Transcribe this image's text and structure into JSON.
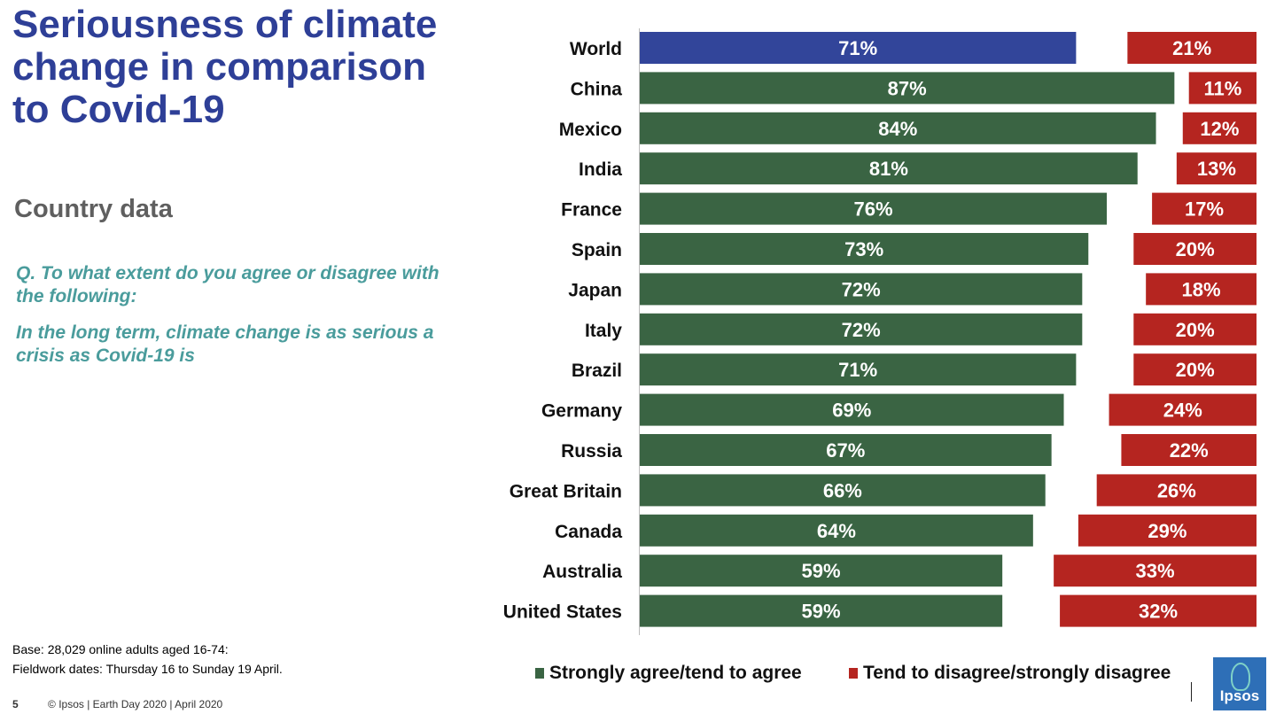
{
  "header": {
    "title": "Seriousness of climate change in comparison to Covid-19",
    "subtitle": "Country data",
    "question": "Q. To what extent do you agree or disagree with the following:",
    "statement": "In the long term, climate change is as serious a crisis as Covid-19 is"
  },
  "notes": {
    "base": "Base: 28,029 online adults aged 16-74:",
    "fieldwork": "Fieldwork dates: Thursday 16 to Sunday 19 April."
  },
  "footer": {
    "page": "5",
    "text": "© Ipsos | Earth Day 2020 | April 2020"
  },
  "logo": {
    "text": "Ipsos",
    "color": "#2e6fb7"
  },
  "legend": {
    "agree_label": "Strongly agree/tend to agree",
    "disagree_label": "Tend to disagree/strongly disagree"
  },
  "chart_data": {
    "type": "bar",
    "orientation": "horizontal",
    "title": "",
    "categories": [
      "World",
      "China",
      "Mexico",
      "India",
      "France",
      "Spain",
      "Japan",
      "Italy",
      "Brazil",
      "Germany",
      "Russia",
      "Great Britain",
      "Canada",
      "Australia",
      "United States"
    ],
    "series": [
      {
        "name": "Strongly agree/tend to agree",
        "values": [
          71,
          87,
          84,
          81,
          76,
          73,
          72,
          72,
          71,
          69,
          67,
          66,
          64,
          59,
          59
        ],
        "color": "#3a6443",
        "highlight_color": "#32459a"
      },
      {
        "name": "Tend to disagree/strongly disagree",
        "values": [
          21,
          11,
          12,
          13,
          17,
          20,
          18,
          20,
          20,
          24,
          22,
          26,
          29,
          33,
          32
        ],
        "color": "#b52520",
        "aligned": "right"
      }
    ],
    "value_suffix": "%",
    "xlim": [
      0,
      100
    ],
    "grid": false,
    "legend_position": "bottom"
  }
}
